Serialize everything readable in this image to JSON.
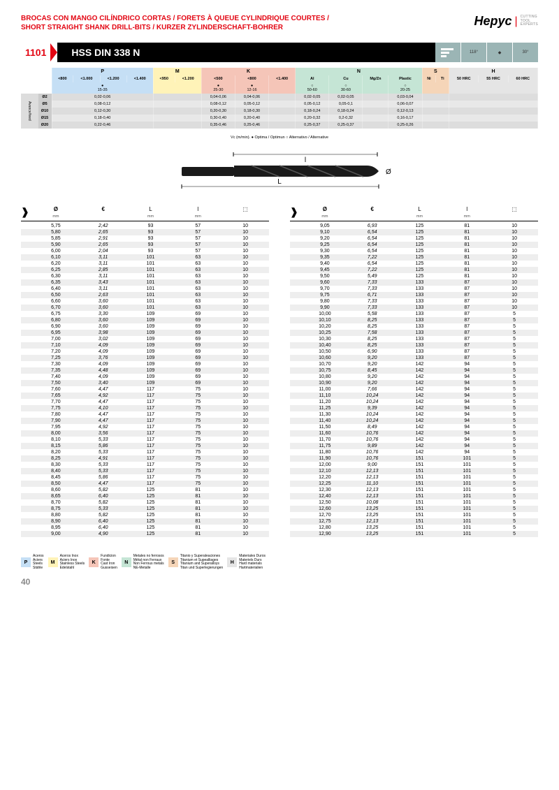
{
  "header": {
    "title_line1": "BROCAS CON MANGO CILÍNDRICO CORTAS / FORETS À QUEUE CYLINDRIQUE COURTES /",
    "title_line2": "SHORT STRAIGHT SHANK DRILL-BITS / KURZER ZYLINDERSCHAFT-BOHRER",
    "logo_text": "Hepyc",
    "logo_sub1": "CUTTING",
    "logo_sub2": "TOOL",
    "logo_sub3": "EXPERTS"
  },
  "product": {
    "code": "1101",
    "name": "HSS DIN 338 N",
    "angle1": "118°",
    "angle2": "30°"
  },
  "cutting": {
    "groups": [
      "P",
      "M",
      "K",
      "N",
      "S",
      "H"
    ],
    "p_cols": [
      "<800",
      "<1.000",
      "<1.200",
      "<1.400"
    ],
    "m_cols": [
      "<950",
      "<1.200"
    ],
    "k_cols": [
      "<500",
      "<800",
      "<1.400"
    ],
    "n_cols": [
      "Al",
      "Cu",
      "Mg/Zn",
      "Plastic"
    ],
    "s_cols": [
      "Ni",
      "Ti"
    ],
    "h_cols": [
      "50 HRC",
      "55 HRC",
      "60 HRC"
    ],
    "vc_p": "15-35",
    "vc_k1": "25-30",
    "vc_k2": "12-16",
    "vc_n1": "50-60",
    "vc_n2": "30-60",
    "vc_n4": "20-25",
    "rows": [
      {
        "label": "Ø2",
        "p": "0,02-0,06",
        "k1": "0,04-0,06",
        "k2": "0,04-0,06",
        "n1": "0,02-0,05",
        "n2": "0,02-0,05",
        "n4": "0,03-0,04"
      },
      {
        "label": "Ø5",
        "p": "0,08-0,12",
        "k1": "0,08-0,12",
        "k2": "0,05-0,12",
        "n1": "0,05-0,12",
        "n2": "0,05-0,1",
        "n4": "0,06-0,07"
      },
      {
        "label": "Ø10",
        "p": "0,12-0,30",
        "k1": "0,20-0,30",
        "k2": "0,18-0,30",
        "n1": "0,18-0,24",
        "n2": "0,18-0,24",
        "n4": "0,12-0,13"
      },
      {
        "label": "Ø15",
        "p": "0,18-0,40",
        "k1": "0,30-0,40",
        "k2": "0,20-0,40",
        "n1": "0,20-0,32",
        "n2": "0,2-0,32",
        "n4": "0,16-0,17"
      },
      {
        "label": "Ø20",
        "p": "0,22-0,46",
        "k1": "0,35-0,46",
        "k2": "0,25-0,46",
        "n1": "0,25-0,37",
        "n2": "0,25-0,37",
        "n4": "0,25-0,26"
      }
    ],
    "note": "Vc (m/min). ● Optima / Optimun ○ Alternativo / Alternative",
    "side_label": "Avance/feed"
  },
  "spec_headers": {
    "dia": "Ø",
    "dia_unit": "mm",
    "eur": "€",
    "L": "L",
    "L_unit": "mm",
    "l": "l",
    "l_unit": "mm"
  },
  "left": [
    [
      "5,75",
      "2,42",
      "93",
      "57",
      "10"
    ],
    [
      "5,80",
      "2,65",
      "93",
      "57",
      "10"
    ],
    [
      "5,85",
      "2,91",
      "93",
      "57",
      "10"
    ],
    [
      "5,90",
      "2,65",
      "93",
      "57",
      "10"
    ],
    [
      "6,00",
      "2,04",
      "93",
      "57",
      "10"
    ],
    [
      "6,10",
      "3,11",
      "101",
      "63",
      "10"
    ],
    [
      "6,20",
      "3,11",
      "101",
      "63",
      "10"
    ],
    [
      "6,25",
      "2,85",
      "101",
      "63",
      "10"
    ],
    [
      "6,30",
      "3,11",
      "101",
      "63",
      "10"
    ],
    [
      "6,35",
      "3,43",
      "101",
      "63",
      "10"
    ],
    [
      "6,40",
      "3,11",
      "101",
      "63",
      "10"
    ],
    [
      "6,50",
      "2,63",
      "101",
      "63",
      "10"
    ],
    [
      "6,60",
      "3,60",
      "101",
      "63",
      "10"
    ],
    [
      "6,70",
      "3,60",
      "101",
      "63",
      "10"
    ],
    [
      "6,75",
      "3,30",
      "109",
      "69",
      "10"
    ],
    [
      "6,80",
      "3,60",
      "109",
      "69",
      "10"
    ],
    [
      "6,90",
      "3,60",
      "109",
      "69",
      "10"
    ],
    [
      "6,95",
      "3,98",
      "109",
      "69",
      "10"
    ],
    [
      "7,00",
      "3,02",
      "109",
      "69",
      "10"
    ],
    [
      "7,10",
      "4,09",
      "109",
      "69",
      "10"
    ],
    [
      "7,20",
      "4,09",
      "109",
      "69",
      "10"
    ],
    [
      "7,25",
      "3,76",
      "109",
      "69",
      "10"
    ],
    [
      "7,30",
      "4,09",
      "109",
      "69",
      "10"
    ],
    [
      "7,35",
      "4,48",
      "109",
      "69",
      "10"
    ],
    [
      "7,40",
      "4,09",
      "109",
      "69",
      "10"
    ],
    [
      "7,50",
      "3,40",
      "109",
      "69",
      "10"
    ],
    [
      "7,60",
      "4,47",
      "117",
      "75",
      "10"
    ],
    [
      "7,65",
      "4,92",
      "117",
      "75",
      "10"
    ],
    [
      "7,70",
      "4,47",
      "117",
      "75",
      "10"
    ],
    [
      "7,75",
      "4,10",
      "117",
      "75",
      "10"
    ],
    [
      "7,80",
      "4,47",
      "117",
      "75",
      "10"
    ],
    [
      "7,90",
      "4,47",
      "117",
      "75",
      "10"
    ],
    [
      "7,95",
      "4,92",
      "117",
      "75",
      "10"
    ],
    [
      "8,00",
      "3,56",
      "117",
      "75",
      "10"
    ],
    [
      "8,10",
      "5,33",
      "117",
      "75",
      "10"
    ],
    [
      "8,15",
      "5,86",
      "117",
      "75",
      "10"
    ],
    [
      "8,20",
      "5,33",
      "117",
      "75",
      "10"
    ],
    [
      "8,25",
      "4,91",
      "117",
      "75",
      "10"
    ],
    [
      "8,30",
      "5,33",
      "117",
      "75",
      "10"
    ],
    [
      "8,40",
      "5,33",
      "117",
      "75",
      "10"
    ],
    [
      "8,45",
      "5,86",
      "117",
      "75",
      "10"
    ],
    [
      "8,50",
      "4,47",
      "117",
      "75",
      "10"
    ],
    [
      "8,60",
      "5,82",
      "125",
      "81",
      "10"
    ],
    [
      "8,65",
      "6,40",
      "125",
      "81",
      "10"
    ],
    [
      "8,70",
      "5,82",
      "125",
      "81",
      "10"
    ],
    [
      "8,75",
      "5,33",
      "125",
      "81",
      "10"
    ],
    [
      "8,80",
      "5,82",
      "125",
      "81",
      "10"
    ],
    [
      "8,90",
      "6,40",
      "125",
      "81",
      "10"
    ],
    [
      "8,95",
      "6,40",
      "125",
      "81",
      "10"
    ],
    [
      "9,00",
      "4,90",
      "125",
      "81",
      "10"
    ]
  ],
  "right": [
    [
      "9,05",
      "6,93",
      "125",
      "81",
      "10"
    ],
    [
      "9,10",
      "6,54",
      "125",
      "81",
      "10"
    ],
    [
      "9,20",
      "6,54",
      "125",
      "81",
      "10"
    ],
    [
      "9,25",
      "6,54",
      "125",
      "81",
      "10"
    ],
    [
      "9,30",
      "6,54",
      "125",
      "81",
      "10"
    ],
    [
      "9,35",
      "7,22",
      "125",
      "81",
      "10"
    ],
    [
      "9,40",
      "6,54",
      "125",
      "81",
      "10"
    ],
    [
      "9,45",
      "7,22",
      "125",
      "81",
      "10"
    ],
    [
      "9,50",
      "5,49",
      "125",
      "81",
      "10"
    ],
    [
      "9,60",
      "7,33",
      "133",
      "87",
      "10"
    ],
    [
      "9,70",
      "7,33",
      "133",
      "87",
      "10"
    ],
    [
      "9,75",
      "6,71",
      "133",
      "87",
      "10"
    ],
    [
      "9,80",
      "7,33",
      "133",
      "87",
      "10"
    ],
    [
      "9,90",
      "7,33",
      "133",
      "87",
      "10"
    ],
    [
      "10,00",
      "5,58",
      "133",
      "87",
      "5"
    ],
    [
      "10,10",
      "8,25",
      "133",
      "87",
      "5"
    ],
    [
      "10,20",
      "8,25",
      "133",
      "87",
      "5"
    ],
    [
      "10,25",
      "7,58",
      "133",
      "87",
      "5"
    ],
    [
      "10,30",
      "8,25",
      "133",
      "87",
      "5"
    ],
    [
      "10,40",
      "8,25",
      "133",
      "87",
      "5"
    ],
    [
      "10,50",
      "6,90",
      "133",
      "87",
      "5"
    ],
    [
      "10,60",
      "9,20",
      "133",
      "87",
      "5"
    ],
    [
      "10,70",
      "9,20",
      "142",
      "94",
      "5"
    ],
    [
      "10,75",
      "8,45",
      "142",
      "94",
      "5"
    ],
    [
      "10,80",
      "9,20",
      "142",
      "94",
      "5"
    ],
    [
      "10,90",
      "9,20",
      "142",
      "94",
      "5"
    ],
    [
      "11,00",
      "7,66",
      "142",
      "94",
      "5"
    ],
    [
      "11,10",
      "10,24",
      "142",
      "94",
      "5"
    ],
    [
      "11,20",
      "10,24",
      "142",
      "94",
      "5"
    ],
    [
      "11,25",
      "9,39",
      "142",
      "94",
      "5"
    ],
    [
      "11,30",
      "10,24",
      "142",
      "94",
      "5"
    ],
    [
      "11,40",
      "10,24",
      "142",
      "94",
      "5"
    ],
    [
      "11,50",
      "8,49",
      "142",
      "94",
      "5"
    ],
    [
      "11,60",
      "10,76",
      "142",
      "94",
      "5"
    ],
    [
      "11,70",
      "10,76",
      "142",
      "94",
      "5"
    ],
    [
      "11,75",
      "9,89",
      "142",
      "94",
      "5"
    ],
    [
      "11,80",
      "10,76",
      "142",
      "94",
      "5"
    ],
    [
      "11,90",
      "10,76",
      "151",
      "101",
      "5"
    ],
    [
      "12,00",
      "9,00",
      "151",
      "101",
      "5"
    ],
    [
      "12,10",
      "12,13",
      "151",
      "101",
      "5"
    ],
    [
      "12,20",
      "12,13",
      "151",
      "101",
      "5"
    ],
    [
      "12,25",
      "11,10",
      "151",
      "101",
      "5"
    ],
    [
      "12,30",
      "12,13",
      "151",
      "101",
      "5"
    ],
    [
      "12,40",
      "12,13",
      "151",
      "101",
      "5"
    ],
    [
      "12,50",
      "10,08",
      "151",
      "101",
      "5"
    ],
    [
      "12,60",
      "13,25",
      "151",
      "101",
      "5"
    ],
    [
      "12,70",
      "13,25",
      "151",
      "101",
      "5"
    ],
    [
      "12,75",
      "12,13",
      "151",
      "101",
      "5"
    ],
    [
      "12,80",
      "13,25",
      "151",
      "101",
      "5"
    ],
    [
      "12,90",
      "13,25",
      "151",
      "101",
      "5"
    ]
  ],
  "legend": [
    {
      "code": "P",
      "color": "#c5dff5",
      "t1": "Aceros",
      "t2": "Aciers",
      "t3": "Steels",
      "t4": "Stähle"
    },
    {
      "code": "M",
      "color": "#fff3b8",
      "t1": "Aceros Inox",
      "t2": "Aciers Inox",
      "t3": "Stainless Steels",
      "t4": "Edelstahl"
    },
    {
      "code": "K",
      "color": "#f5c5b8",
      "t1": "Fundicion",
      "t2": "Fonte",
      "t3": "Cast Iron",
      "t4": "Gusseisen"
    },
    {
      "code": "N",
      "color": "#c5e5d5",
      "t1": "Metales no ferrosos",
      "t2": "Métal non Ferraux",
      "t3": "Non Ferrous metals",
      "t4": "NE-Metalle"
    },
    {
      "code": "S",
      "color": "#f5d5b8",
      "t1": "Titanio y Superaleaciones",
      "t2": "Titanium et Supealliages",
      "t3": "Titanium and Superalloys",
      "t4": "Titan und Superlegierungen"
    },
    {
      "code": "H",
      "color": "#e5e5e5",
      "t1": "Materiales Duros",
      "t2": "Materiels Durs",
      "t3": "Hard materials",
      "t4": "Hartmaterialien"
    }
  ],
  "page_number": "40",
  "diagram": {
    "L_label": "L",
    "l_label": "l",
    "dia_label": "Ø"
  }
}
